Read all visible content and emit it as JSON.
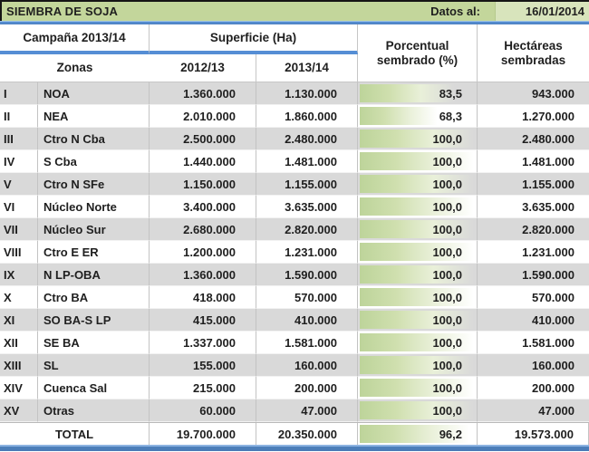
{
  "title_bar": {
    "title": "SIEMBRA DE SOJA",
    "date_label": "Datos al:",
    "date_value": "16/01/2014"
  },
  "header": {
    "campaign": "Campaña 2013/14",
    "surface": "Superficie (Ha)",
    "zones": "Zonas",
    "col_2012": "2012/13",
    "col_2013": "2013/14",
    "percent_line1": "Porcentual",
    "percent_line2": "sembrado (%)",
    "hectares_line1": "Hectáreas",
    "hectares_line2": "sembradas"
  },
  "rows": [
    {
      "num": "I",
      "zone": "NOA",
      "s2012": "1.360.000",
      "s2013": "1.130.000",
      "pct": 83.5,
      "pct_label": "83,5",
      "ha": "943.000"
    },
    {
      "num": "II",
      "zone": "NEA",
      "s2012": "2.010.000",
      "s2013": "1.860.000",
      "pct": 68.3,
      "pct_label": "68,3",
      "ha": "1.270.000"
    },
    {
      "num": "III",
      "zone": "Ctro N Cba",
      "s2012": "2.500.000",
      "s2013": "2.480.000",
      "pct": 100.0,
      "pct_label": "100,0",
      "ha": "2.480.000"
    },
    {
      "num": "IV",
      "zone": "S Cba",
      "s2012": "1.440.000",
      "s2013": "1.481.000",
      "pct": 100.0,
      "pct_label": "100,0",
      "ha": "1.481.000"
    },
    {
      "num": "V",
      "zone": "Ctro N SFe",
      "s2012": "1.150.000",
      "s2013": "1.155.000",
      "pct": 100.0,
      "pct_label": "100,0",
      "ha": "1.155.000"
    },
    {
      "num": "VI",
      "zone": "Núcleo Norte",
      "s2012": "3.400.000",
      "s2013": "3.635.000",
      "pct": 100.0,
      "pct_label": "100,0",
      "ha": "3.635.000"
    },
    {
      "num": "VII",
      "zone": "Núcleo Sur",
      "s2012": "2.680.000",
      "s2013": "2.820.000",
      "pct": 100.0,
      "pct_label": "100,0",
      "ha": "2.820.000"
    },
    {
      "num": "VIII",
      "zone": "Ctro E ER",
      "s2012": "1.200.000",
      "s2013": "1.231.000",
      "pct": 100.0,
      "pct_label": "100,0",
      "ha": "1.231.000"
    },
    {
      "num": "IX",
      "zone": "N LP-OBA",
      "s2012": "1.360.000",
      "s2013": "1.590.000",
      "pct": 100.0,
      "pct_label": "100,0",
      "ha": "1.590.000"
    },
    {
      "num": "X",
      "zone": "Ctro BA",
      "s2012": "418.000",
      "s2013": "570.000",
      "pct": 100.0,
      "pct_label": "100,0",
      "ha": "570.000"
    },
    {
      "num": "XI",
      "zone": "SO BA-S LP",
      "s2012": "415.000",
      "s2013": "410.000",
      "pct": 100.0,
      "pct_label": "100,0",
      "ha": "410.000"
    },
    {
      "num": "XII",
      "zone": "SE BA",
      "s2012": "1.337.000",
      "s2013": "1.581.000",
      "pct": 100.0,
      "pct_label": "100,0",
      "ha": "1.581.000"
    },
    {
      "num": "XIII",
      "zone": "SL",
      "s2012": "155.000",
      "s2013": "160.000",
      "pct": 100.0,
      "pct_label": "100,0",
      "ha": "160.000"
    },
    {
      "num": "XIV",
      "zone": "Cuenca Sal",
      "s2012": "215.000",
      "s2013": "200.000",
      "pct": 100.0,
      "pct_label": "100,0",
      "ha": "200.000"
    },
    {
      "num": "XV",
      "zone": "Otras",
      "s2012": "60.000",
      "s2013": "47.000",
      "pct": 100.0,
      "pct_label": "100,0",
      "ha": "47.000"
    }
  ],
  "total": {
    "label": "TOTAL",
    "s2012": "19.700.000",
    "s2013": "20.350.000",
    "pct": 96.2,
    "pct_label": "96,2",
    "ha": "19.573.000"
  },
  "colors": {
    "header_green": "#c3d69b",
    "date_cell_green": "#d8e4bc",
    "accent_blue": "#558ed5",
    "accent_blue_dark": "#4f81bd",
    "stripe_gray": "#d9d9d9",
    "data_bar_green": "#bdd49a",
    "text": "#1f1f1f"
  }
}
